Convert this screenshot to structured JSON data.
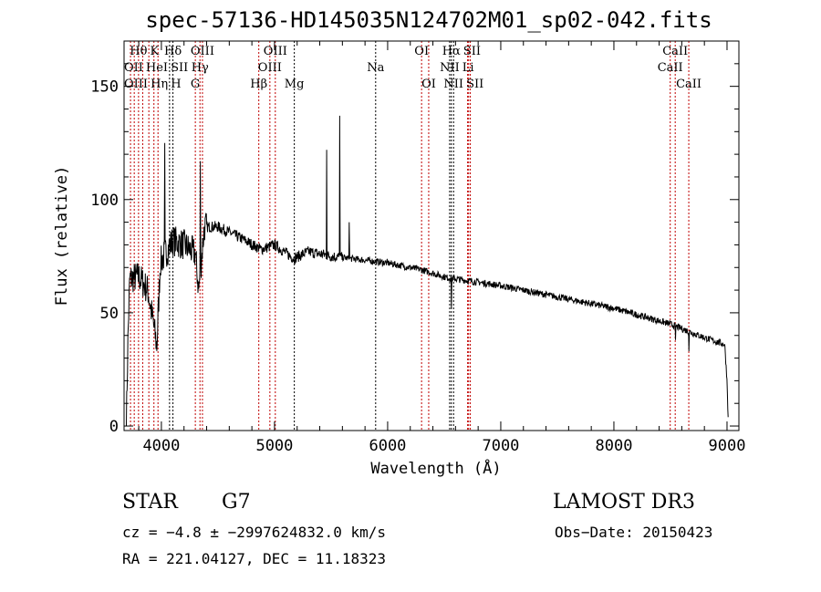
{
  "chart_data": {
    "type": "line",
    "title": "spec-57136-HD145035N124702M01_sp02-042.fits",
    "xlabel": "Wavelength (Å)",
    "ylabel": "Flux (relative)",
    "xlim": [
      3670,
      9105
    ],
    "ylim": [
      -2,
      170
    ],
    "xticks": [
      4000,
      5000,
      6000,
      7000,
      8000,
      9000
    ],
    "yticks": [
      0,
      50,
      100,
      150
    ],
    "grid": false,
    "series": [
      {
        "name": "spectrum",
        "continuum_anchors": [
          [
            3690,
            0
          ],
          [
            3705,
            40
          ],
          [
            3720,
            65
          ],
          [
            3800,
            66
          ],
          [
            3880,
            60
          ],
          [
            3930,
            45
          ],
          [
            3960,
            35
          ],
          [
            3990,
            72
          ],
          [
            4100,
            82
          ],
          [
            4200,
            80
          ],
          [
            4300,
            76
          ],
          [
            4330,
            60
          ],
          [
            4380,
            88
          ],
          [
            4500,
            88
          ],
          [
            4700,
            83
          ],
          [
            4880,
            78
          ],
          [
            5000,
            80
          ],
          [
            5170,
            74
          ],
          [
            5300,
            77
          ],
          [
            5500,
            75
          ],
          [
            6000,
            72
          ],
          [
            6300,
            69
          ],
          [
            6560,
            65
          ],
          [
            6600,
            65
          ],
          [
            7000,
            62
          ],
          [
            7500,
            57
          ],
          [
            8000,
            52
          ],
          [
            8500,
            45
          ],
          [
            8800,
            39
          ],
          [
            8980,
            36
          ],
          [
            9000,
            20
          ],
          [
            9010,
            3
          ]
        ],
        "spikes": [
          [
            4030,
            125
          ],
          [
            4345,
            117
          ],
          [
            5460,
            122
          ],
          [
            5577,
            137
          ],
          [
            5660,
            90
          ],
          [
            6565,
            52
          ],
          [
            8545,
            38
          ],
          [
            8665,
            33
          ]
        ]
      }
    ],
    "lines": [
      {
        "label": "OII",
        "wave": 3727,
        "row": 1
      },
      {
        "label": "Hθ",
        "wave": 3798,
        "row": 0
      },
      {
        "label": "OIII",
        "wave": 3760,
        "row": 2
      },
      {
        "label": "Hη",
        "wave": 3835,
        "row": 2
      },
      {
        "label": "HeI",
        "wave": 3889,
        "row": 1
      },
      {
        "label": "K",
        "wave": 3934,
        "row": 0
      },
      {
        "label": "H",
        "wave": 3970,
        "row": 2
      },
      {
        "label": "SII",
        "wave": 4072,
        "row": 1
      },
      {
        "label": "Hδ",
        "wave": 4102,
        "row": 0
      },
      {
        "label": "G",
        "wave": 4300,
        "row": 2
      },
      {
        "label": "Hγ",
        "wave": 4341,
        "row": 1
      },
      {
        "label": "OIII",
        "wave": 4363,
        "row": 0
      },
      {
        "label": "Hβ",
        "wave": 4861,
        "row": 2
      },
      {
        "label": "OIII",
        "wave": 4959,
        "row": 1
      },
      {
        "label": "OIII",
        "wave": 5007,
        "row": 0
      },
      {
        "label": "Mg",
        "wave": 5175,
        "row": 2
      },
      {
        "label": "Na",
        "wave": 5894,
        "row": 1
      },
      {
        "label": "OI",
        "wave": 6300,
        "row": 0
      },
      {
        "label": "OI",
        "wave": 6363,
        "row": 2
      },
      {
        "label": "NII",
        "wave": 6548,
        "row": 1
      },
      {
        "label": "Hα",
        "wave": 6563,
        "row": 0
      },
      {
        "label": "NII",
        "wave": 6583,
        "row": 2
      },
      {
        "label": "Li",
        "wave": 6707,
        "row": 1
      },
      {
        "label": "SII",
        "wave": 6716,
        "row": 0
      },
      {
        "label": "SII",
        "wave": 6731,
        "row": 2
      },
      {
        "label": "CaII",
        "wave": 8498,
        "row": 1
      },
      {
        "label": "CaII",
        "wave": 8542,
        "row": 0
      },
      {
        "label": "CaII",
        "wave": 8662,
        "row": 2
      }
    ],
    "line_colors": {
      "red": "#c00000",
      "black": "#000000"
    }
  },
  "info": {
    "class": "STAR",
    "subclass": "G7",
    "survey": "LAMOST DR3",
    "cz": "cz = −4.8 ± −2997624832.0 km/s",
    "obs_date": "Obs−Date: 20150423",
    "coords": "RA = 221.04127, DEC =  11.18323"
  }
}
